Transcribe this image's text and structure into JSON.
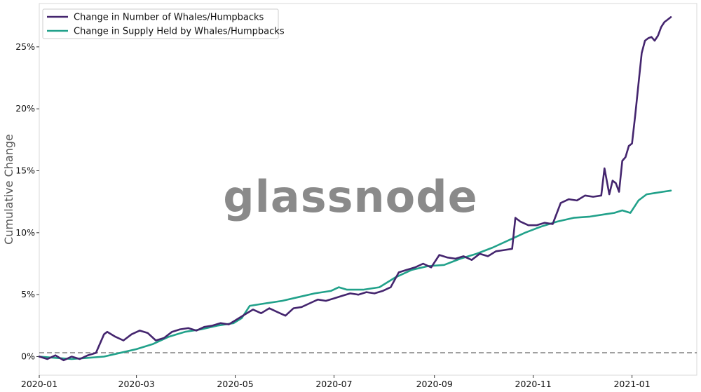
{
  "chart_data": {
    "type": "line",
    "ylabel": "Cumulative Change",
    "watermark": "glassnode",
    "x_ticks": [
      "2020-01",
      "2020-03",
      "2020-05",
      "2020-07",
      "2020-09",
      "2020-11",
      "2021-01"
    ],
    "y_ticks": [
      "0%",
      "5%",
      "10%",
      "15%",
      "20%",
      "25%"
    ],
    "y_tick_values": [
      0,
      5,
      10,
      15,
      20,
      25
    ],
    "xlim": [
      "2020-01-01",
      "2021-02-10"
    ],
    "ylim": [
      -1.5,
      28.5
    ],
    "zero_line": {
      "y": 0,
      "style": "dashed",
      "color": "#808080"
    },
    "legend": {
      "position": "top-left"
    },
    "series": [
      {
        "name": "Change in Number of Whales/Humpbacks",
        "color": "#44256e",
        "x": [
          "2020-01-01",
          "2020-01-06",
          "2020-01-11",
          "2020-01-16",
          "2020-01-21",
          "2020-01-26",
          "2020-01-31",
          "2020-02-05",
          "2020-02-10",
          "2020-02-12",
          "2020-02-17",
          "2020-02-22",
          "2020-02-27",
          "2020-03-03",
          "2020-03-08",
          "2020-03-13",
          "2020-03-18",
          "2020-03-23",
          "2020-03-28",
          "2020-04-02",
          "2020-04-07",
          "2020-04-12",
          "2020-04-17",
          "2020-04-22",
          "2020-04-27",
          "2020-05-02",
          "2020-05-07",
          "2020-05-12",
          "2020-05-17",
          "2020-05-22",
          "2020-05-27",
          "2020-06-01",
          "2020-06-06",
          "2020-06-11",
          "2020-06-16",
          "2020-06-21",
          "2020-06-26",
          "2020-07-01",
          "2020-07-06",
          "2020-07-11",
          "2020-07-16",
          "2020-07-21",
          "2020-07-26",
          "2020-07-31",
          "2020-08-05",
          "2020-08-10",
          "2020-08-15",
          "2020-08-20",
          "2020-08-25",
          "2020-08-30",
          "2020-09-04",
          "2020-09-09",
          "2020-09-14",
          "2020-09-19",
          "2020-09-24",
          "2020-09-29",
          "2020-10-04",
          "2020-10-09",
          "2020-10-14",
          "2020-10-19",
          "2020-10-21",
          "2020-10-24",
          "2020-10-29",
          "2020-11-03",
          "2020-11-08",
          "2020-11-13",
          "2020-11-18",
          "2020-11-23",
          "2020-11-28",
          "2020-12-03",
          "2020-12-08",
          "2020-12-13",
          "2020-12-15",
          "2020-12-18",
          "2020-12-20",
          "2020-12-22",
          "2020-12-24",
          "2020-12-26",
          "2020-12-28",
          "2020-12-30",
          "2021-01-01",
          "2021-01-03",
          "2021-01-05",
          "2021-01-07",
          "2021-01-09",
          "2021-01-11",
          "2021-01-13",
          "2021-01-15",
          "2021-01-17",
          "2021-01-19",
          "2021-01-21",
          "2021-01-23",
          "2021-01-25"
        ],
        "y": [
          0.0,
          -0.2,
          0.1,
          -0.3,
          0.0,
          -0.2,
          0.1,
          0.3,
          1.8,
          2.0,
          1.6,
          1.3,
          1.8,
          2.1,
          1.9,
          1.3,
          1.5,
          2.0,
          2.2,
          2.3,
          2.1,
          2.4,
          2.5,
          2.7,
          2.6,
          3.0,
          3.4,
          3.8,
          3.5,
          3.9,
          3.6,
          3.3,
          3.9,
          4.0,
          4.3,
          4.6,
          4.5,
          4.7,
          4.9,
          5.1,
          5.0,
          5.2,
          5.1,
          5.3,
          5.6,
          6.8,
          7.0,
          7.2,
          7.5,
          7.2,
          8.2,
          8.0,
          7.9,
          8.1,
          7.8,
          8.3,
          8.1,
          8.5,
          8.6,
          8.7,
          11.2,
          10.9,
          10.6,
          10.6,
          10.8,
          10.7,
          12.4,
          12.7,
          12.6,
          13.0,
          12.9,
          13.0,
          15.2,
          13.1,
          14.2,
          14.0,
          13.3,
          15.8,
          16.1,
          17.0,
          17.2,
          19.5,
          22.0,
          24.5,
          25.5,
          25.7,
          25.8,
          25.5,
          25.9,
          26.6,
          27.0,
          27.2,
          27.4
        ]
      },
      {
        "name": "Change in Supply Held by Whales/Humpbacks",
        "color": "#21a18a",
        "x": [
          "2020-01-01",
          "2020-01-11",
          "2020-01-21",
          "2020-01-31",
          "2020-02-10",
          "2020-02-20",
          "2020-03-01",
          "2020-03-11",
          "2020-03-21",
          "2020-03-31",
          "2020-04-10",
          "2020-04-20",
          "2020-04-30",
          "2020-05-05",
          "2020-05-10",
          "2020-05-20",
          "2020-05-30",
          "2020-06-09",
          "2020-06-19",
          "2020-06-29",
          "2020-07-04",
          "2020-07-09",
          "2020-07-19",
          "2020-07-29",
          "2020-08-08",
          "2020-08-18",
          "2020-08-28",
          "2020-09-07",
          "2020-09-17",
          "2020-09-27",
          "2020-10-07",
          "2020-10-17",
          "2020-10-27",
          "2020-11-06",
          "2020-11-16",
          "2020-11-26",
          "2020-12-06",
          "2020-12-16",
          "2020-12-21",
          "2020-12-26",
          "2020-12-31",
          "2021-01-05",
          "2021-01-10",
          "2021-01-15",
          "2021-01-20",
          "2021-01-25"
        ],
        "y": [
          0.0,
          -0.1,
          -0.2,
          -0.1,
          0.0,
          0.3,
          0.6,
          1.0,
          1.6,
          2.0,
          2.2,
          2.5,
          2.7,
          3.1,
          4.1,
          4.3,
          4.5,
          4.8,
          5.1,
          5.3,
          5.6,
          5.4,
          5.4,
          5.6,
          6.4,
          7.0,
          7.3,
          7.4,
          7.9,
          8.3,
          8.8,
          9.4,
          10.0,
          10.5,
          10.9,
          11.2,
          11.3,
          11.5,
          11.6,
          11.8,
          11.6,
          12.6,
          13.1,
          13.2,
          13.3,
          13.4
        ]
      }
    ]
  }
}
